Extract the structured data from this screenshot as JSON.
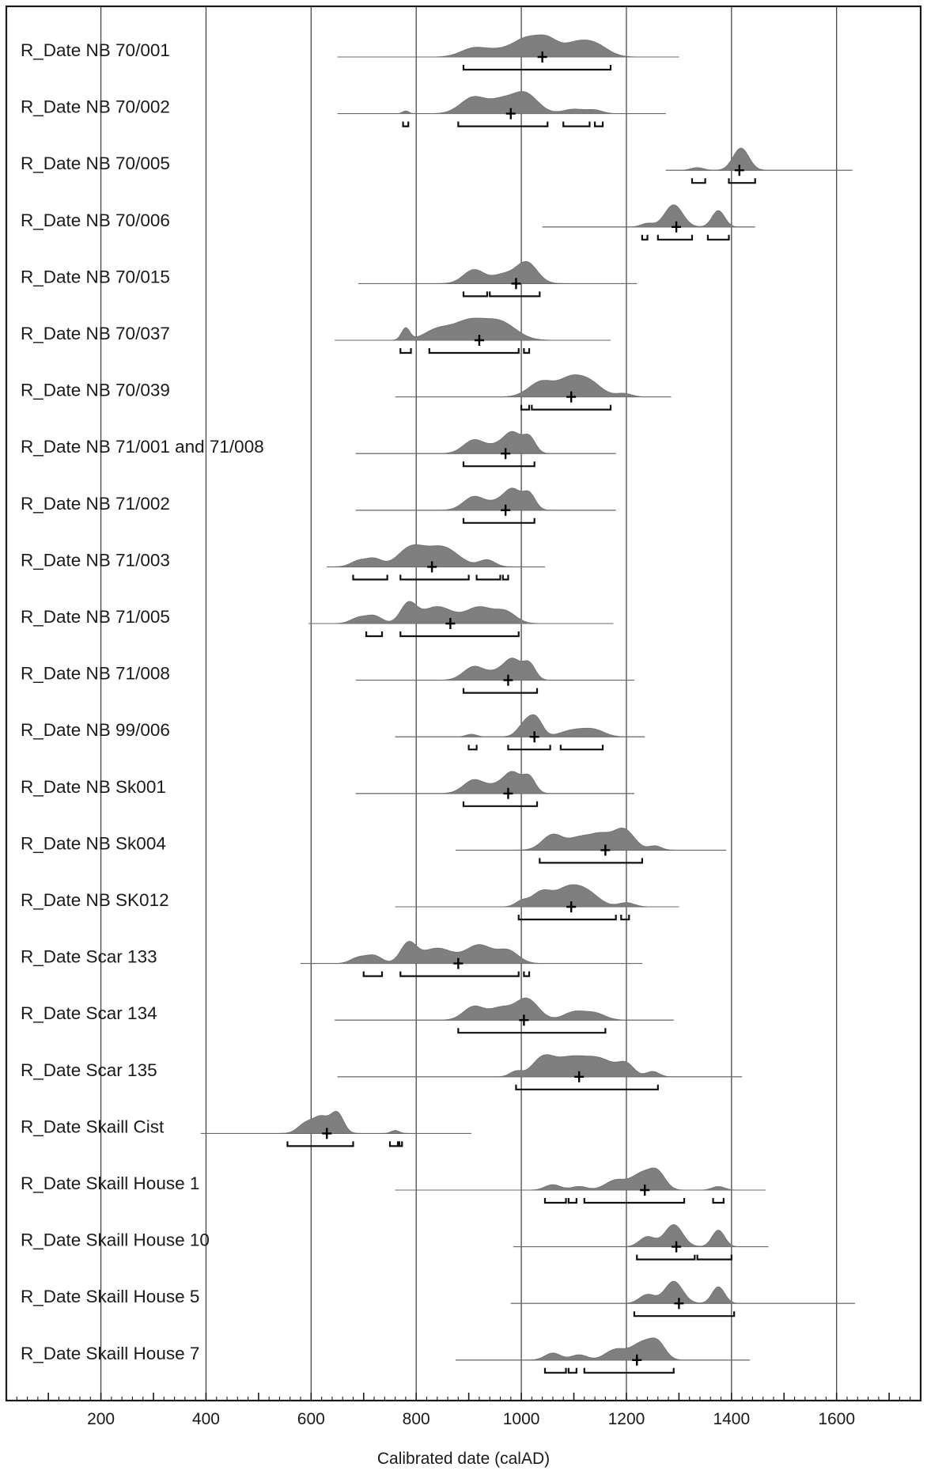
{
  "chart_data": {
    "type": "calibrated_date_distributions",
    "title": "",
    "xlabel": "Calibrated date (calAD)",
    "ylabel": "",
    "xlim": [
      20,
      1760
    ],
    "major_ticks": [
      200,
      400,
      600,
      800,
      1000,
      1200,
      1400,
      1600
    ],
    "minor_tick_step": 20,
    "grid": "vertical lines at major ticks",
    "rows": [
      {
        "label": "R_Date NB 70/001",
        "range": [
          650,
          1300
        ],
        "median": 1040,
        "peaks": [
          {
            "c": 910,
            "w": 25,
            "h": 0.45
          },
          {
            "c": 960,
            "w": 25,
            "h": 0.3
          },
          {
            "c": 1010,
            "w": 25,
            "h": 0.9
          },
          {
            "c": 1050,
            "w": 20,
            "h": 0.75
          },
          {
            "c": 1100,
            "w": 25,
            "h": 0.6
          },
          {
            "c": 1140,
            "w": 25,
            "h": 0.6
          }
        ],
        "ranges": [
          [
            890,
            1170
          ]
        ]
      },
      {
        "label": "R_Date NB 70/002",
        "range": [
          650,
          1275
        ],
        "median": 980,
        "peaks": [
          {
            "c": 910,
            "w": 25,
            "h": 0.75
          },
          {
            "c": 960,
            "w": 20,
            "h": 0.45
          },
          {
            "c": 1005,
            "w": 25,
            "h": 0.95
          },
          {
            "c": 1100,
            "w": 20,
            "h": 0.2
          },
          {
            "c": 1140,
            "w": 15,
            "h": 0.15
          },
          {
            "c": 780,
            "w": 6,
            "h": 0.12
          }
        ],
        "ranges": [
          [
            775,
            785
          ],
          [
            880,
            1050
          ],
          [
            1080,
            1130
          ],
          [
            1140,
            1155
          ]
        ]
      },
      {
        "label": "R_Date NB 70/005",
        "range": [
          1275,
          1630
        ],
        "median": 1415,
        "peaks": [
          {
            "c": 1335,
            "w": 12,
            "h": 0.12
          },
          {
            "c": 1418,
            "w": 15,
            "h": 1.0
          }
        ],
        "ranges": [
          [
            1325,
            1350
          ],
          [
            1395,
            1445
          ]
        ]
      },
      {
        "label": "R_Date NB 70/006",
        "range": [
          1040,
          1445
        ],
        "median": 1295,
        "peaks": [
          {
            "c": 1240,
            "w": 12,
            "h": 0.15
          },
          {
            "c": 1290,
            "w": 17,
            "h": 0.95
          },
          {
            "c": 1375,
            "w": 12,
            "h": 0.7
          }
        ],
        "ranges": [
          [
            1230,
            1240
          ],
          [
            1260,
            1325
          ],
          [
            1355,
            1395
          ]
        ]
      },
      {
        "label": "R_Date NB 70/015",
        "range": [
          690,
          1220
        ],
        "median": 990,
        "peaks": [
          {
            "c": 910,
            "w": 20,
            "h": 0.65
          },
          {
            "c": 965,
            "w": 20,
            "h": 0.4
          },
          {
            "c": 1010,
            "w": 20,
            "h": 1.0
          }
        ],
        "ranges": [
          [
            890,
            935
          ],
          [
            940,
            1035
          ]
        ]
      },
      {
        "label": "R_Date NB 70/037",
        "range": [
          645,
          1170
        ],
        "median": 920,
        "peaks": [
          {
            "c": 780,
            "w": 8,
            "h": 0.65
          },
          {
            "c": 840,
            "w": 25,
            "h": 0.55
          },
          {
            "c": 900,
            "w": 30,
            "h": 1.0
          },
          {
            "c": 960,
            "w": 30,
            "h": 0.95
          }
        ],
        "ranges": [
          [
            770,
            790
          ],
          [
            825,
            995
          ],
          [
            1005,
            1015
          ]
        ]
      },
      {
        "label": "R_Date NB 70/039",
        "range": [
          760,
          1285
        ],
        "median": 1095,
        "peaks": [
          {
            "c": 1040,
            "w": 25,
            "h": 0.95
          },
          {
            "c": 1090,
            "w": 20,
            "h": 0.75
          },
          {
            "c": 1125,
            "w": 25,
            "h": 1.0
          },
          {
            "c": 1195,
            "w": 15,
            "h": 0.2
          }
        ],
        "ranges": [
          [
            1000,
            1015
          ],
          [
            1020,
            1170
          ]
        ]
      },
      {
        "label": "R_Date NB 71/001 and 71/008",
        "range": [
          685,
          1180
        ],
        "median": 970,
        "peaks": [
          {
            "c": 910,
            "w": 20,
            "h": 0.75
          },
          {
            "c": 960,
            "w": 20,
            "h": 0.5
          },
          {
            "c": 985,
            "w": 15,
            "h": 0.95
          },
          {
            "c": 1015,
            "w": 12,
            "h": 0.9
          }
        ],
        "ranges": [
          [
            890,
            1025
          ]
        ]
      },
      {
        "label": "R_Date NB 71/002",
        "range": [
          685,
          1180
        ],
        "median": 970,
        "peaks": [
          {
            "c": 910,
            "w": 20,
            "h": 0.75
          },
          {
            "c": 960,
            "w": 20,
            "h": 0.5
          },
          {
            "c": 985,
            "w": 15,
            "h": 0.95
          },
          {
            "c": 1015,
            "w": 12,
            "h": 0.9
          }
        ],
        "ranges": [
          [
            890,
            1025
          ]
        ]
      },
      {
        "label": "R_Date NB 71/003",
        "range": [
          630,
          1045
        ],
        "median": 830,
        "peaks": [
          {
            "c": 690,
            "w": 15,
            "h": 0.3
          },
          {
            "c": 720,
            "w": 15,
            "h": 0.4
          },
          {
            "c": 790,
            "w": 25,
            "h": 0.95
          },
          {
            "c": 850,
            "w": 30,
            "h": 1.0
          },
          {
            "c": 935,
            "w": 15,
            "h": 0.35
          }
        ],
        "ranges": [
          [
            680,
            745
          ],
          [
            770,
            900
          ],
          [
            915,
            960
          ],
          [
            965,
            975
          ]
        ]
      },
      {
        "label": "R_Date NB 71/005",
        "range": [
          595,
          1175
        ],
        "median": 865,
        "peaks": [
          {
            "c": 690,
            "w": 15,
            "h": 0.3
          },
          {
            "c": 720,
            "w": 15,
            "h": 0.4
          },
          {
            "c": 785,
            "w": 15,
            "h": 1.0
          },
          {
            "c": 840,
            "w": 30,
            "h": 0.9
          },
          {
            "c": 920,
            "w": 25,
            "h": 0.85
          },
          {
            "c": 970,
            "w": 20,
            "h": 0.6
          }
        ],
        "ranges": [
          [
            705,
            735
          ],
          [
            770,
            995
          ]
        ]
      },
      {
        "label": "R_Date NB 71/008",
        "range": [
          685,
          1215
        ],
        "median": 975,
        "peaks": [
          {
            "c": 910,
            "w": 20,
            "h": 0.75
          },
          {
            "c": 960,
            "w": 20,
            "h": 0.5
          },
          {
            "c": 985,
            "w": 15,
            "h": 0.95
          },
          {
            "c": 1015,
            "w": 12,
            "h": 0.9
          }
        ],
        "ranges": [
          [
            890,
            1030
          ]
        ]
      },
      {
        "label": "R_Date NB 99/006",
        "range": [
          760,
          1235
        ],
        "median": 1025,
        "peaks": [
          {
            "c": 905,
            "w": 10,
            "h": 0.15
          },
          {
            "c": 1010,
            "w": 15,
            "h": 0.9
          },
          {
            "c": 1030,
            "w": 12,
            "h": 0.8
          },
          {
            "c": 1100,
            "w": 25,
            "h": 0.4
          },
          {
            "c": 1140,
            "w": 20,
            "h": 0.35
          }
        ],
        "ranges": [
          [
            900,
            915
          ],
          [
            975,
            1055
          ],
          [
            1075,
            1155
          ]
        ]
      },
      {
        "label": "R_Date NB Sk001",
        "range": [
          685,
          1215
        ],
        "median": 975,
        "peaks": [
          {
            "c": 910,
            "w": 20,
            "h": 0.75
          },
          {
            "c": 960,
            "w": 20,
            "h": 0.5
          },
          {
            "c": 985,
            "w": 15,
            "h": 0.95
          },
          {
            "c": 1015,
            "w": 12,
            "h": 0.9
          }
        ],
        "ranges": [
          [
            890,
            1030
          ]
        ]
      },
      {
        "label": "R_Date NB Sk004",
        "range": [
          875,
          1390
        ],
        "median": 1160,
        "peaks": [
          {
            "c": 1060,
            "w": 20,
            "h": 0.75
          },
          {
            "c": 1110,
            "w": 20,
            "h": 0.55
          },
          {
            "c": 1150,
            "w": 20,
            "h": 0.7
          },
          {
            "c": 1195,
            "w": 20,
            "h": 1.0
          },
          {
            "c": 1255,
            "w": 12,
            "h": 0.2
          }
        ],
        "ranges": [
          [
            1035,
            1230
          ]
        ]
      },
      {
        "label": "R_Date NB SK012",
        "range": [
          760,
          1300
        ],
        "median": 1095,
        "peaks": [
          {
            "c": 1000,
            "w": 12,
            "h": 0.3
          },
          {
            "c": 1040,
            "w": 20,
            "h": 0.95
          },
          {
            "c": 1085,
            "w": 20,
            "h": 0.8
          },
          {
            "c": 1120,
            "w": 25,
            "h": 1.0
          },
          {
            "c": 1200,
            "w": 15,
            "h": 0.25
          }
        ],
        "ranges": [
          [
            995,
            1180
          ],
          [
            1190,
            1205
          ]
        ]
      },
      {
        "label": "R_Date Scar 133",
        "range": [
          580,
          1230
        ],
        "median": 880,
        "peaks": [
          {
            "c": 690,
            "w": 15,
            "h": 0.3
          },
          {
            "c": 720,
            "w": 15,
            "h": 0.4
          },
          {
            "c": 785,
            "w": 15,
            "h": 1.0
          },
          {
            "c": 840,
            "w": 30,
            "h": 0.8
          },
          {
            "c": 920,
            "w": 25,
            "h": 0.95
          },
          {
            "c": 975,
            "w": 20,
            "h": 0.65
          }
        ],
        "ranges": [
          [
            700,
            735
          ],
          [
            770,
            995
          ],
          [
            1005,
            1015
          ]
        ]
      },
      {
        "label": "R_Date Scar 134",
        "range": [
          645,
          1290
        ],
        "median": 1005,
        "peaks": [
          {
            "c": 910,
            "w": 20,
            "h": 0.6
          },
          {
            "c": 960,
            "w": 20,
            "h": 0.5
          },
          {
            "c": 1010,
            "w": 22,
            "h": 0.95
          },
          {
            "c": 1100,
            "w": 20,
            "h": 0.35
          },
          {
            "c": 1140,
            "w": 20,
            "h": 0.3
          }
        ],
        "ranges": [
          [
            880,
            1160
          ]
        ]
      },
      {
        "label": "R_Date Scar 135",
        "range": [
          650,
          1420
        ],
        "median": 1110,
        "peaks": [
          {
            "c": 990,
            "w": 12,
            "h": 0.3
          },
          {
            "c": 1040,
            "w": 20,
            "h": 0.95
          },
          {
            "c": 1090,
            "w": 30,
            "h": 1.0
          },
          {
            "c": 1150,
            "w": 30,
            "h": 0.95
          },
          {
            "c": 1200,
            "w": 15,
            "h": 0.6
          },
          {
            "c": 1250,
            "w": 12,
            "h": 0.3
          }
        ],
        "ranges": [
          [
            990,
            1260
          ]
        ]
      },
      {
        "label": "R_Date Skaill Cist",
        "range": [
          390,
          905
        ],
        "median": 630,
        "peaks": [
          {
            "c": 590,
            "w": 15,
            "h": 0.5
          },
          {
            "c": 620,
            "w": 15,
            "h": 0.8
          },
          {
            "c": 650,
            "w": 12,
            "h": 1.0
          },
          {
            "c": 760,
            "w": 8,
            "h": 0.15
          }
        ],
        "ranges": [
          [
            555,
            680
          ],
          [
            750,
            765
          ],
          [
            768,
            773
          ]
        ]
      },
      {
        "label": "R_Date Skaill House 1",
        "range": [
          760,
          1465
        ],
        "median": 1235,
        "peaks": [
          {
            "c": 1060,
            "w": 15,
            "h": 0.3
          },
          {
            "c": 1110,
            "w": 15,
            "h": 0.2
          },
          {
            "c": 1180,
            "w": 20,
            "h": 0.55
          },
          {
            "c": 1230,
            "w": 20,
            "h": 0.9
          },
          {
            "c": 1260,
            "w": 15,
            "h": 0.85
          },
          {
            "c": 1375,
            "w": 12,
            "h": 0.2
          }
        ],
        "ranges": [
          [
            1045,
            1085
          ],
          [
            1090,
            1105
          ],
          [
            1120,
            1310
          ],
          [
            1365,
            1385
          ]
        ]
      },
      {
        "label": "R_Date Skaill House 10",
        "range": [
          985,
          1470
        ],
        "median": 1295,
        "peaks": [
          {
            "c": 1240,
            "w": 15,
            "h": 0.45
          },
          {
            "c": 1290,
            "w": 17,
            "h": 1.0
          },
          {
            "c": 1375,
            "w": 12,
            "h": 0.75
          }
        ],
        "ranges": [
          [
            1220,
            1330
          ],
          [
            1335,
            1400
          ]
        ]
      },
      {
        "label": "R_Date Skaill House 5",
        "range": [
          980,
          1635
        ],
        "median": 1300,
        "peaks": [
          {
            "c": 1240,
            "w": 15,
            "h": 0.4
          },
          {
            "c": 1290,
            "w": 17,
            "h": 1.0
          },
          {
            "c": 1375,
            "w": 12,
            "h": 0.75
          }
        ],
        "ranges": [
          [
            1215,
            1405
          ]
        ]
      },
      {
        "label": "R_Date Skaill House 7",
        "range": [
          875,
          1435
        ],
        "median": 1220,
        "peaks": [
          {
            "c": 1060,
            "w": 15,
            "h": 0.4
          },
          {
            "c": 1110,
            "w": 15,
            "h": 0.3
          },
          {
            "c": 1180,
            "w": 20,
            "h": 0.6
          },
          {
            "c": 1230,
            "w": 20,
            "h": 0.95
          },
          {
            "c": 1260,
            "w": 15,
            "h": 0.85
          }
        ],
        "ranges": [
          [
            1045,
            1085
          ],
          [
            1090,
            1105
          ],
          [
            1120,
            1290
          ]
        ]
      }
    ]
  }
}
